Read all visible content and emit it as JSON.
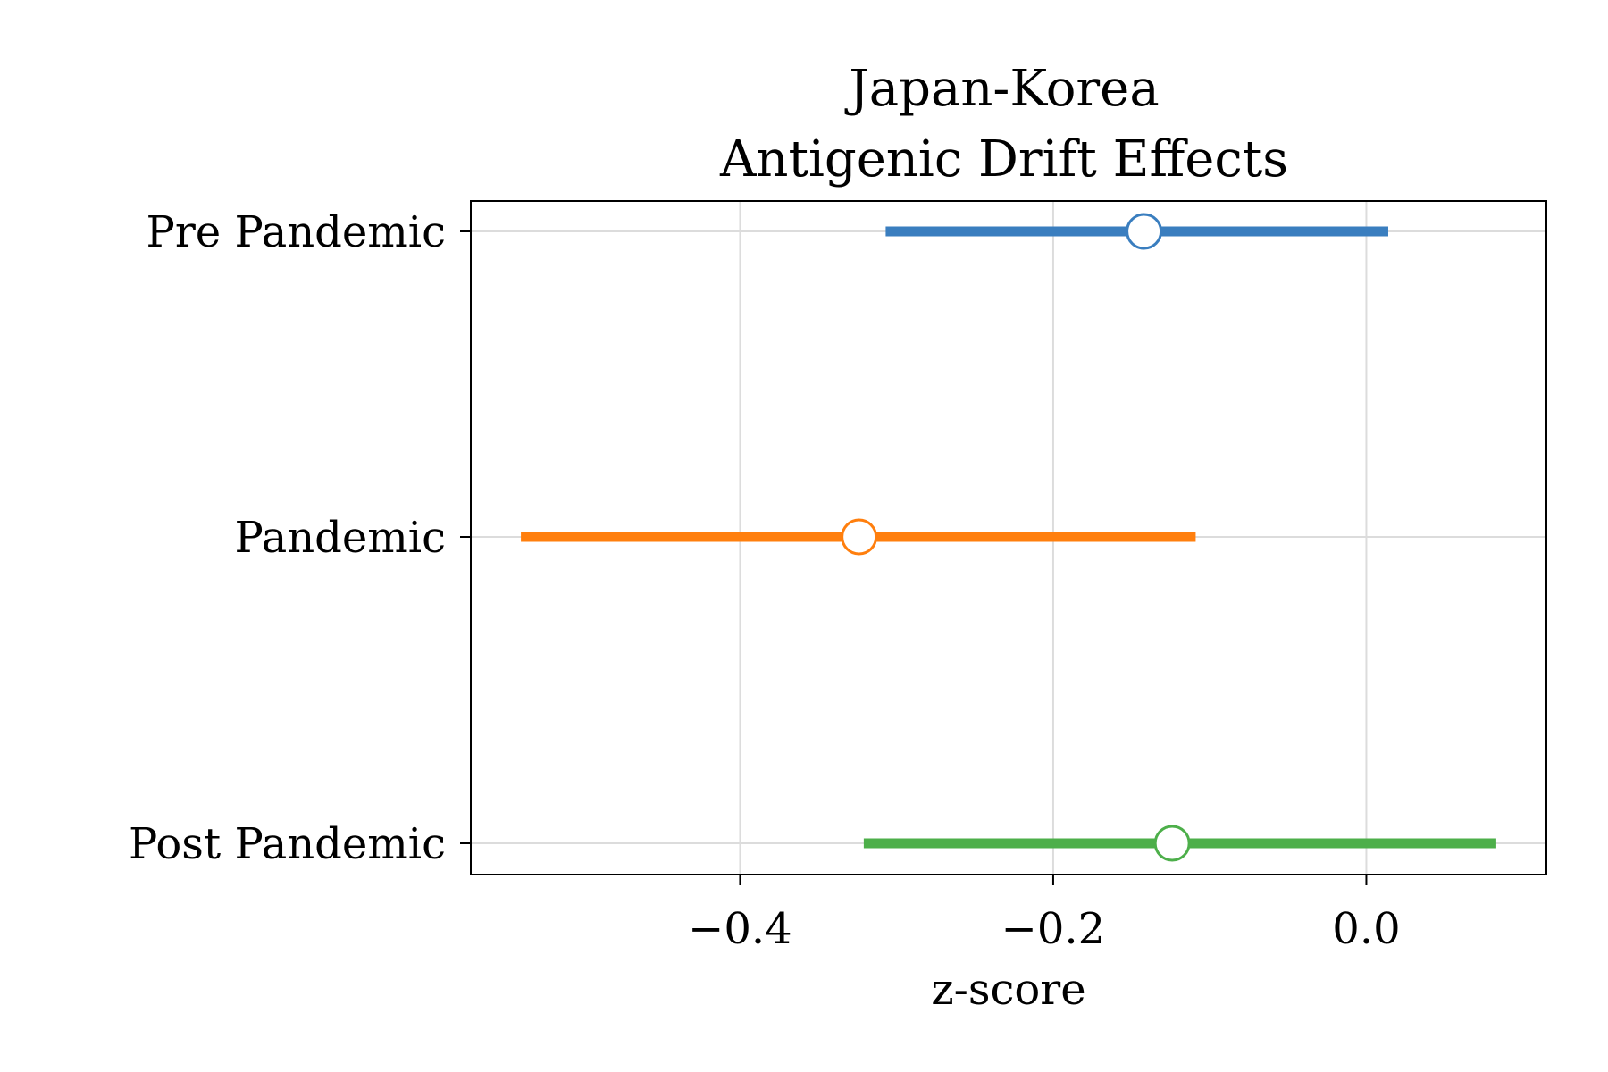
{
  "chart_data": {
    "type": "forest",
    "title": "Japan-Korea\nAntigenic Drift Effects",
    "title_lines": [
      "Japan-Korea",
      "Antigenic Drift Effects"
    ],
    "xlabel": "z-score",
    "ylabel": "",
    "xlim": [
      -0.572,
      0.115
    ],
    "x_ticks": [
      -0.4,
      -0.2,
      0.0
    ],
    "x_tick_labels": [
      "−0.4",
      "−0.2",
      "0.0"
    ],
    "grid": true,
    "legend": "none",
    "categories": [
      "Pre Pandemic",
      "Pandemic",
      "Post Pandemic"
    ],
    "series": [
      {
        "label": "Pre Pandemic",
        "estimate": -0.142,
        "ci_low": -0.307,
        "ci_high": 0.014,
        "color": "#3a7ebf"
      },
      {
        "label": "Pandemic",
        "estimate": -0.324,
        "ci_low": -0.54,
        "ci_high": -0.109,
        "color": "#ff7f0e"
      },
      {
        "label": "Post Pandemic",
        "estimate": -0.124,
        "ci_low": -0.321,
        "ci_high": 0.083,
        "color": "#4daf4a"
      }
    ]
  }
}
